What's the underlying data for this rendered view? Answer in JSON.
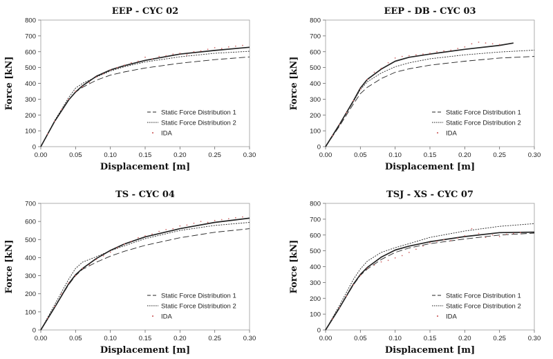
{
  "chart_data": [
    {
      "type": "line",
      "title": "EEP - CYC 02",
      "xlabel": "Displacement [m]",
      "ylabel": "Force [kN]",
      "xlim": [
        0,
        0.3
      ],
      "ylim": [
        0,
        800
      ],
      "xticks": [
        "0.00",
        "0.05",
        "0.10",
        "0.15",
        "0.20",
        "0.25",
        "0.30"
      ],
      "yticks": [
        "0",
        "100",
        "200",
        "300",
        "400",
        "500",
        "600",
        "700",
        "800"
      ],
      "legend_position": "bottom-right",
      "series": [
        {
          "name": "Static Force Distribution 1",
          "style": "dashed",
          "x": [
            0,
            0.02,
            0.04,
            0.05,
            0.06,
            0.08,
            0.1,
            0.12,
            0.15,
            0.2,
            0.25,
            0.3
          ],
          "y": [
            0,
            160,
            295,
            345,
            375,
            420,
            452,
            472,
            497,
            527,
            550,
            567
          ]
        },
        {
          "name": "Static Force Distribution 2",
          "style": "dotted",
          "x": [
            0,
            0.02,
            0.04,
            0.05,
            0.06,
            0.08,
            0.1,
            0.12,
            0.15,
            0.2,
            0.25,
            0.3
          ],
          "y": [
            0,
            165,
            310,
            370,
            400,
            440,
            478,
            505,
            535,
            568,
            590,
            603
          ]
        },
        {
          "name": "",
          "style": "solid",
          "x": [
            0,
            0.02,
            0.04,
            0.05,
            0.06,
            0.08,
            0.1,
            0.12,
            0.15,
            0.2,
            0.25,
            0.3
          ],
          "y": [
            0,
            160,
            295,
            345,
            385,
            445,
            485,
            512,
            545,
            585,
            608,
            628
          ]
        },
        {
          "name": "IDA",
          "style": "points",
          "x": [
            0.01,
            0.02,
            0.03,
            0.04,
            0.05,
            0.06,
            0.07,
            0.08,
            0.09,
            0.1,
            0.11,
            0.12,
            0.13,
            0.14,
            0.15,
            0.16,
            0.17,
            0.18,
            0.19,
            0.2,
            0.21,
            0.22,
            0.23,
            0.24,
            0.25,
            0.26,
            0.27,
            0.28,
            0.29
          ],
          "y": [
            80,
            160,
            235,
            300,
            350,
            380,
            405,
            440,
            460,
            485,
            500,
            515,
            530,
            540,
            565,
            555,
            570,
            575,
            585,
            590,
            580,
            600,
            605,
            615,
            625,
            620,
            630,
            635,
            640
          ]
        }
      ]
    },
    {
      "type": "line",
      "title": "EEP - DB - CYC 03",
      "xlabel": "Displacement [m]",
      "ylabel": "Force [kN]",
      "xlim": [
        0,
        0.3
      ],
      "ylim": [
        0,
        800
      ],
      "xticks": [
        "0.00",
        "0.05",
        "0.10",
        "0.15",
        "0.20",
        "0.25",
        "0.30"
      ],
      "yticks": [
        "0",
        "100",
        "200",
        "300",
        "400",
        "500",
        "600",
        "700",
        "800"
      ],
      "legend_position": "bottom-right",
      "series": [
        {
          "name": "Static Force Distribution 1",
          "style": "dashed",
          "x": [
            0,
            0.02,
            0.04,
            0.05,
            0.06,
            0.08,
            0.1,
            0.12,
            0.15,
            0.2,
            0.25,
            0.3
          ],
          "y": [
            0,
            130,
            270,
            335,
            375,
            430,
            470,
            492,
            515,
            540,
            560,
            570
          ]
        },
        {
          "name": "Static Force Distribution 2",
          "style": "dotted",
          "x": [
            0,
            0.02,
            0.04,
            0.05,
            0.06,
            0.08,
            0.1,
            0.12,
            0.15,
            0.2,
            0.25,
            0.3
          ],
          "y": [
            0,
            140,
            285,
            360,
            410,
            465,
            505,
            530,
            555,
            580,
            598,
            610
          ]
        },
        {
          "name": "",
          "style": "solid",
          "x": [
            0,
            0.02,
            0.04,
            0.05,
            0.06,
            0.08,
            0.1,
            0.12,
            0.15,
            0.2,
            0.25,
            0.27
          ],
          "y": [
            0,
            140,
            290,
            370,
            425,
            490,
            540,
            565,
            585,
            615,
            640,
            655
          ]
        },
        {
          "name": "IDA",
          "style": "points",
          "x": [
            0.01,
            0.02,
            0.03,
            0.04,
            0.05,
            0.06,
            0.07,
            0.08,
            0.09,
            0.1,
            0.11,
            0.12,
            0.13,
            0.14,
            0.15,
            0.16,
            0.17,
            0.18,
            0.19,
            0.2,
            0.21,
            0.22,
            0.23,
            0.24,
            0.25
          ],
          "y": [
            70,
            140,
            215,
            290,
            365,
            425,
            470,
            495,
            530,
            560,
            570,
            575,
            580,
            585,
            590,
            600,
            605,
            610,
            620,
            630,
            650,
            660,
            655,
            650,
            645
          ]
        }
      ]
    },
    {
      "type": "line",
      "title": "TS - CYC 04",
      "xlabel": "Displacement [m]",
      "ylabel": "Force [kN]",
      "xlim": [
        0,
        0.3
      ],
      "ylim": [
        0,
        700
      ],
      "xticks": [
        "0.00",
        "0.05",
        "0.10",
        "0.15",
        "0.20",
        "0.25",
        "0.30"
      ],
      "yticks": [
        "0",
        "100",
        "200",
        "300",
        "400",
        "500",
        "600",
        "700"
      ],
      "legend_position": "bottom-right",
      "series": [
        {
          "name": "Static Force Distribution 1",
          "style": "dashed",
          "x": [
            0,
            0.02,
            0.04,
            0.05,
            0.06,
            0.08,
            0.1,
            0.12,
            0.15,
            0.2,
            0.25,
            0.3
          ],
          "y": [
            0,
            125,
            250,
            300,
            335,
            375,
            408,
            435,
            468,
            510,
            540,
            560
          ]
        },
        {
          "name": "Static Force Distribution 2",
          "style": "dotted",
          "x": [
            0,
            0.02,
            0.04,
            0.05,
            0.06,
            0.08,
            0.1,
            0.12,
            0.15,
            0.2,
            0.25,
            0.3
          ],
          "y": [
            0,
            140,
            280,
            340,
            375,
            405,
            438,
            465,
            505,
            550,
            578,
            595
          ]
        },
        {
          "name": "",
          "style": "solid",
          "x": [
            0,
            0.02,
            0.04,
            0.05,
            0.06,
            0.08,
            0.1,
            0.12,
            0.15,
            0.2,
            0.25,
            0.3
          ],
          "y": [
            0,
            125,
            255,
            305,
            340,
            395,
            440,
            475,
            515,
            560,
            595,
            618
          ]
        },
        {
          "name": "IDA",
          "style": "points",
          "x": [
            0.01,
            0.02,
            0.03,
            0.04,
            0.05,
            0.06,
            0.07,
            0.08,
            0.09,
            0.1,
            0.11,
            0.12,
            0.13,
            0.14,
            0.15,
            0.16,
            0.17,
            0.18,
            0.19,
            0.2,
            0.21,
            0.22,
            0.23,
            0.24,
            0.25,
            0.26,
            0.27,
            0.28,
            0.29
          ],
          "y": [
            65,
            130,
            200,
            260,
            300,
            340,
            360,
            390,
            410,
            430,
            455,
            475,
            490,
            510,
            520,
            530,
            545,
            555,
            560,
            575,
            580,
            590,
            600,
            595,
            605,
            610,
            615,
            620,
            625
          ]
        }
      ]
    },
    {
      "type": "line",
      "title": "TSJ - XS - CYC 07",
      "xlabel": "Displacement [m]",
      "ylabel": "Force [kN]",
      "xlim": [
        0,
        0.3
      ],
      "ylim": [
        0,
        800
      ],
      "xticks": [
        "0.00",
        "0.05",
        "0.10",
        "0.15",
        "0.20",
        "0.25",
        "0.30"
      ],
      "yticks": [
        "0",
        "100",
        "200",
        "300",
        "400",
        "500",
        "600",
        "700",
        "800"
      ],
      "legend_position": "bottom-right",
      "series": [
        {
          "name": "Static Force Distribution 1",
          "style": "dashed",
          "x": [
            0,
            0.02,
            0.04,
            0.05,
            0.06,
            0.08,
            0.1,
            0.12,
            0.15,
            0.2,
            0.25,
            0.3
          ],
          "y": [
            0,
            140,
            285,
            345,
            385,
            445,
            490,
            518,
            545,
            575,
            600,
            612
          ]
        },
        {
          "name": "Static Force Distribution 2",
          "style": "dotted",
          "x": [
            0,
            0.02,
            0.04,
            0.05,
            0.06,
            0.08,
            0.1,
            0.12,
            0.15,
            0.2,
            0.25,
            0.3
          ],
          "y": [
            0,
            155,
            320,
            385,
            435,
            490,
            520,
            545,
            585,
            625,
            655,
            672
          ]
        },
        {
          "name": "",
          "style": "solid",
          "x": [
            0,
            0.02,
            0.04,
            0.05,
            0.06,
            0.08,
            0.1,
            0.12,
            0.15,
            0.2,
            0.25,
            0.3
          ],
          "y": [
            0,
            140,
            290,
            350,
            395,
            460,
            505,
            530,
            558,
            590,
            615,
            618
          ]
        },
        {
          "name": "IDA",
          "style": "points",
          "x": [
            0.01,
            0.02,
            0.03,
            0.04,
            0.05,
            0.06,
            0.07,
            0.08,
            0.09,
            0.1,
            0.11,
            0.12,
            0.13,
            0.14,
            0.15,
            0.16,
            0.17,
            0.18,
            0.19,
            0.2,
            0.21,
            0.22,
            0.23,
            0.24,
            0.25,
            0.26,
            0.27,
            0.28
          ],
          "y": [
            70,
            140,
            215,
            285,
            345,
            390,
            410,
            430,
            440,
            455,
            470,
            490,
            510,
            530,
            550,
            560,
            570,
            565,
            580,
            595,
            640,
            610,
            585,
            600,
            590,
            605,
            610,
            615
          ]
        }
      ]
    }
  ]
}
